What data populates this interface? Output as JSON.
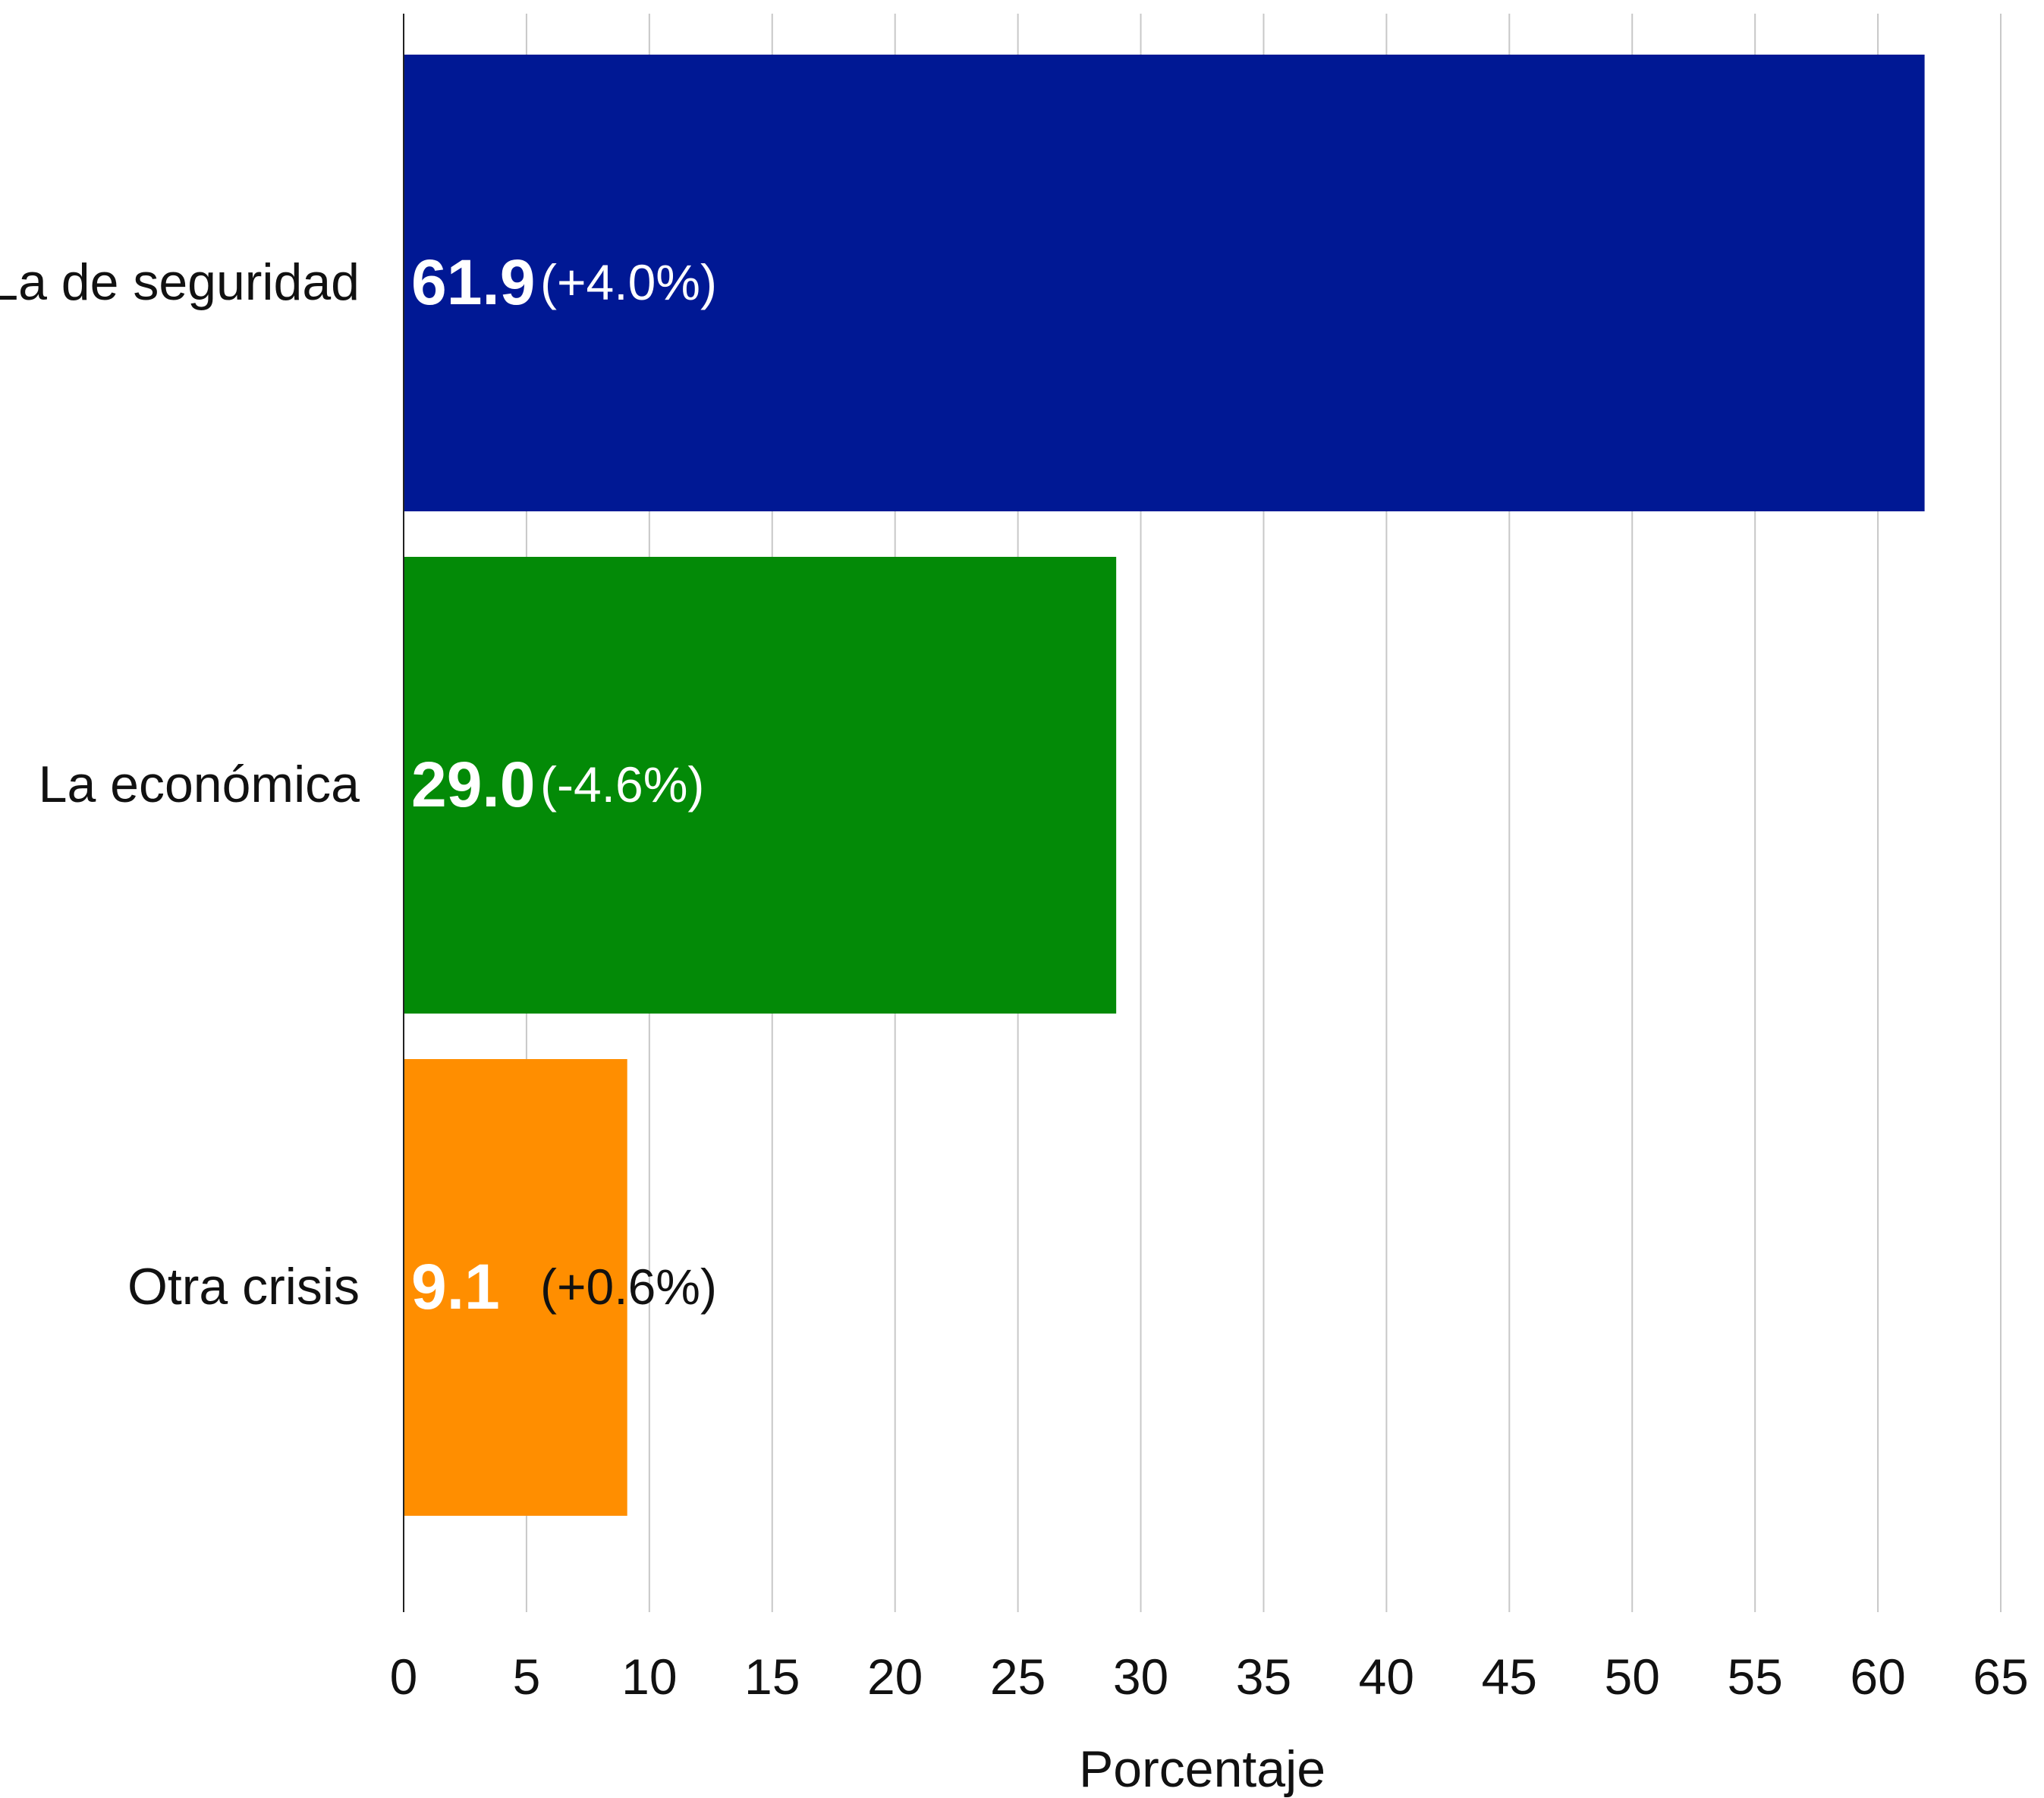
{
  "chart_data": {
    "type": "bar",
    "orientation": "horizontal",
    "categories": [
      "La de seguridad",
      "La económica",
      "Otra crisis"
    ],
    "values": [
      61.9,
      29.0,
      9.1
    ],
    "value_labels": [
      "61.9",
      "29.0",
      "9.1"
    ],
    "change_labels": [
      "(+4.0%)",
      "(-4.6%)",
      "(+0.6%)"
    ],
    "colors": [
      "#001894",
      "#038A07",
      "#FF8E00"
    ],
    "change_label_colors": [
      "#ffffff",
      "#ffffff",
      "#111111"
    ],
    "xlabel": "Porcentaje",
    "ylabel": "",
    "xlim": [
      0,
      65
    ],
    "xticks": [
      0,
      5,
      10,
      15,
      20,
      25,
      30,
      35,
      40,
      45,
      50,
      55,
      60,
      65
    ],
    "grid": "vertical",
    "legend": "none"
  }
}
